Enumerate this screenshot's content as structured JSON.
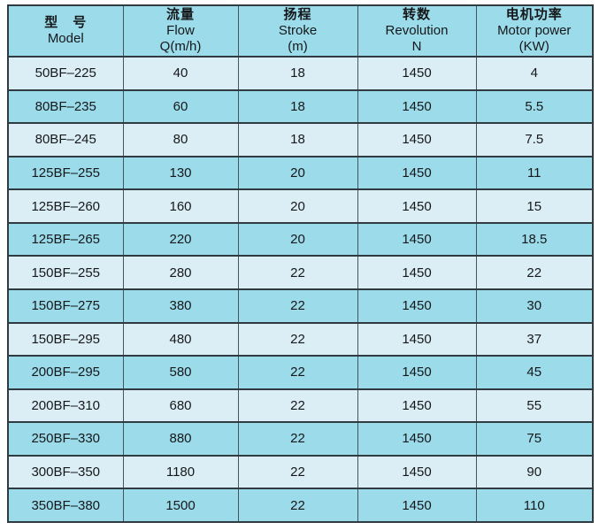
{
  "colors": {
    "page_bg": "#ffffff",
    "row_light": "#dceef5",
    "row_dark": "#9bdbea",
    "header_bg": "#9bdbea",
    "border_dark": "#303b41",
    "border_mid": "#47545a",
    "text": "#15181a"
  },
  "table": {
    "columns": [
      {
        "zh": "型　号",
        "en": "Model",
        "unit": ""
      },
      {
        "zh": "流量",
        "en": "Flow",
        "unit": "Q(m/h)"
      },
      {
        "zh": "扬程",
        "en": "Stroke",
        "unit": "(m)"
      },
      {
        "zh": "转数",
        "en": "Revolution",
        "unit": "N"
      },
      {
        "zh": "电机功率",
        "en": "Motor power",
        "unit": "(KW)"
      }
    ],
    "rows": [
      [
        "50BF–225",
        "40",
        "18",
        "1450",
        "4"
      ],
      [
        "80BF–235",
        "60",
        "18",
        "1450",
        "5.5"
      ],
      [
        "80BF–245",
        "80",
        "18",
        "1450",
        "7.5"
      ],
      [
        "125BF–255",
        "130",
        "20",
        "1450",
        "11"
      ],
      [
        "125BF–260",
        "160",
        "20",
        "1450",
        "15"
      ],
      [
        "125BF–265",
        "220",
        "20",
        "1450",
        "18.5"
      ],
      [
        "150BF–255",
        "280",
        "22",
        "1450",
        "22"
      ],
      [
        "150BF–275",
        "380",
        "22",
        "1450",
        "30"
      ],
      [
        "150BF–295",
        "480",
        "22",
        "1450",
        "37"
      ],
      [
        "200BF–295",
        "580",
        "22",
        "1450",
        "45"
      ],
      [
        "200BF–310",
        "680",
        "22",
        "1450",
        "55"
      ],
      [
        "250BF–330",
        "880",
        "22",
        "1450",
        "75"
      ],
      [
        "300BF–350",
        "1180",
        "22",
        "1450",
        "90"
      ],
      [
        "350BF–380",
        "1500",
        "22",
        "1450",
        "110"
      ]
    ]
  }
}
